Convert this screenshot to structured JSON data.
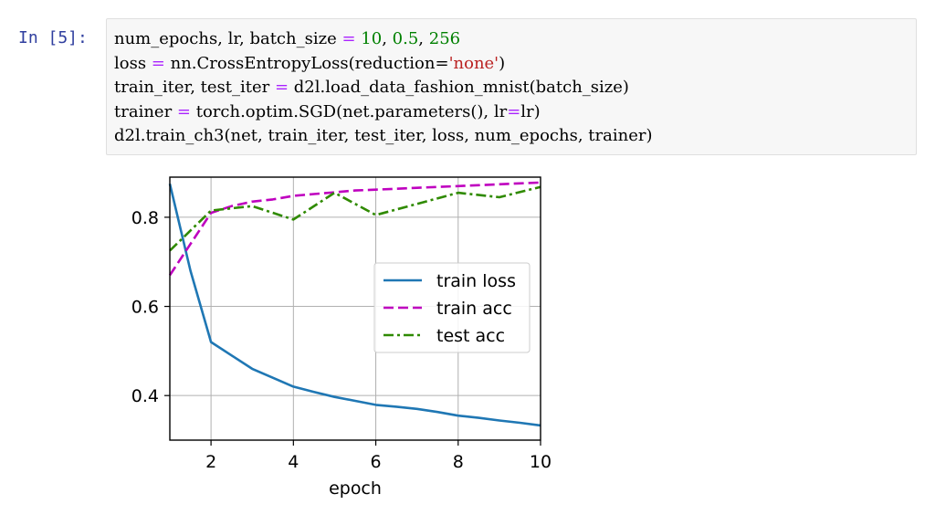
{
  "cell": {
    "prompt": "In  [5]:",
    "lines": [
      [
        {
          "t": "num_epochs, lr, batch_size ",
          "c": ""
        },
        {
          "t": "=",
          "c": "op"
        },
        {
          "t": " ",
          "c": ""
        },
        {
          "t": "10",
          "c": "num"
        },
        {
          "t": ", ",
          "c": ""
        },
        {
          "t": "0.5",
          "c": "num"
        },
        {
          "t": ", ",
          "c": ""
        },
        {
          "t": "256",
          "c": "num"
        }
      ],
      [
        {
          "t": "loss ",
          "c": ""
        },
        {
          "t": "=",
          "c": "op"
        },
        {
          "t": " nn.CrossEntropyLoss(reduction=",
          "c": ""
        },
        {
          "t": "'none'",
          "c": "str"
        },
        {
          "t": ")",
          "c": ""
        }
      ],
      [
        {
          "t": "train_iter, test_iter ",
          "c": ""
        },
        {
          "t": "=",
          "c": "op"
        },
        {
          "t": " d2l.load_data_fashion_mnist(batch_size)",
          "c": ""
        }
      ],
      [
        {
          "t": "trainer ",
          "c": ""
        },
        {
          "t": "=",
          "c": "op"
        },
        {
          "t": " torch.optim.SGD(net.parameters(), lr",
          "c": ""
        },
        {
          "t": "=",
          "c": "op"
        },
        {
          "t": "lr)",
          "c": ""
        }
      ],
      [
        {
          "t": "d2l.train_ch3(net, train_iter, test_iter, loss, num_epochs, trainer)",
          "c": ""
        }
      ]
    ]
  },
  "chart_data": {
    "type": "line",
    "xlabel": "epoch",
    "ylabel": "",
    "xlim": [
      1,
      10
    ],
    "ylim": [
      0.3,
      0.89
    ],
    "xticks": [
      2,
      4,
      6,
      8,
      10
    ],
    "yticks": [
      0.4,
      0.6,
      0.8
    ],
    "grid": true,
    "legend_position": "center-right",
    "series": [
      {
        "name": "train loss",
        "color": "#1f77b4",
        "style": "solid",
        "x": [
          1,
          1.5,
          2,
          2.5,
          3,
          3.5,
          4,
          4.5,
          5,
          5.5,
          6,
          6.5,
          7,
          7.5,
          8,
          8.5,
          9,
          9.5,
          10
        ],
        "y": [
          0.875,
          0.68,
          0.52,
          0.49,
          0.46,
          0.44,
          0.42,
          0.408,
          0.397,
          0.388,
          0.379,
          0.375,
          0.37,
          0.363,
          0.355,
          0.35,
          0.344,
          0.339,
          0.333
        ]
      },
      {
        "name": "train acc",
        "color": "#bf00bf",
        "style": "dashed",
        "x": [
          1,
          1.5,
          2,
          2.5,
          3,
          3.5,
          4,
          4.5,
          5,
          5.5,
          6,
          6.5,
          7,
          7.5,
          8,
          8.5,
          9,
          9.5,
          10
        ],
        "y": [
          0.67,
          0.74,
          0.81,
          0.825,
          0.835,
          0.84,
          0.848,
          0.852,
          0.856,
          0.86,
          0.862,
          0.864,
          0.866,
          0.868,
          0.87,
          0.872,
          0.874,
          0.876,
          0.878
        ]
      },
      {
        "name": "test acc",
        "color": "#2f8a00",
        "style": "dashdot",
        "x": [
          1,
          2,
          3,
          4,
          5,
          6,
          7,
          8,
          9,
          10
        ],
        "y": [
          0.725,
          0.815,
          0.825,
          0.795,
          0.855,
          0.805,
          0.83,
          0.855,
          0.845,
          0.868
        ]
      }
    ]
  }
}
